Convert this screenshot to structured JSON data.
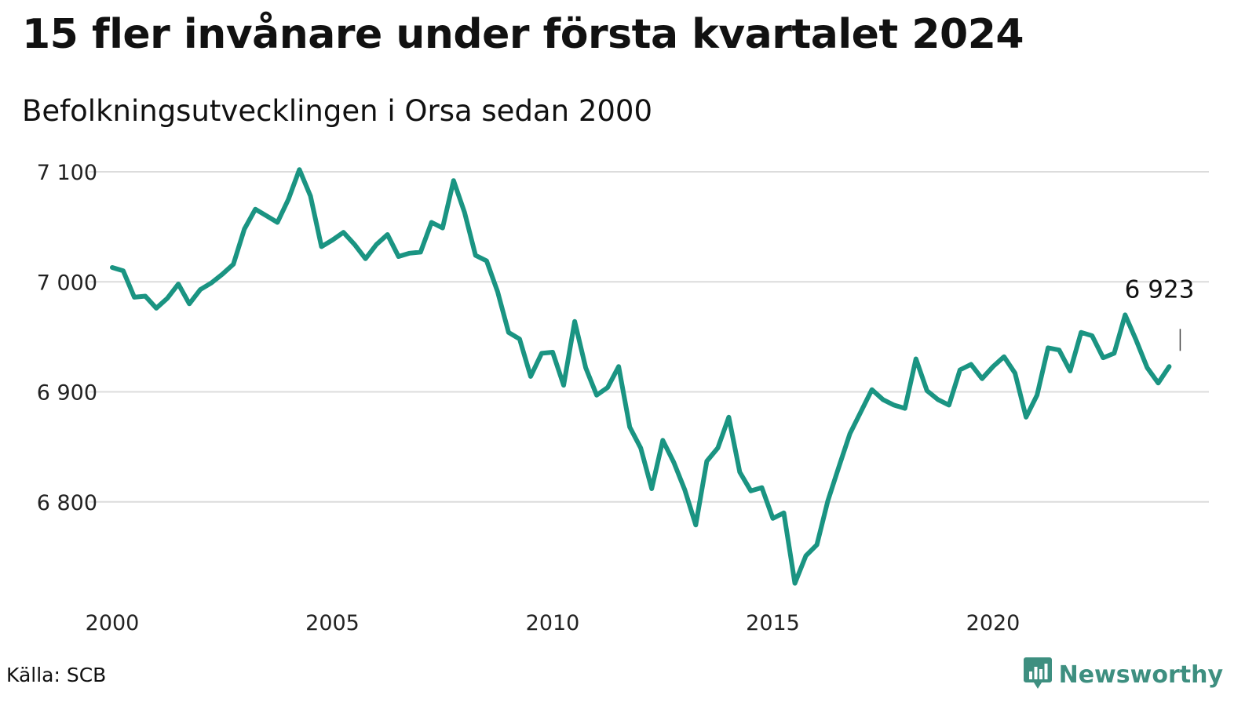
{
  "title": "15 fler invånare under första kvartalet 2024",
  "subtitle": "Befolkningsutvecklingen i Orsa sedan 2000",
  "source": "Källa: SCB",
  "brand": {
    "name": "Newsworthy",
    "icon": "newsworthy-logo-icon"
  },
  "colors": {
    "line": "#1a9482",
    "grid": "#dcdcdc",
    "brand": "#3e8f80"
  },
  "chart_data": {
    "type": "line",
    "title": "15 fler invånare under första kvartalet 2024",
    "subtitle": "Befolkningsutvecklingen i Orsa sedan 2000",
    "xlabel": "",
    "ylabel": "",
    "x_range": [
      2000,
      2024.25
    ],
    "ylim": [
      6720,
      7110
    ],
    "x_ticks": [
      2000,
      2005,
      2010,
      2015,
      2020
    ],
    "x_tick_labels": [
      "2000",
      "2005",
      "2010",
      "2015",
      "2020"
    ],
    "y_ticks": [
      6800,
      6900,
      7000,
      7100
    ],
    "y_tick_labels": [
      "6 800",
      "6 900",
      "7 000",
      "7 100"
    ],
    "grid": "horizontal",
    "legend": "none",
    "annotation": {
      "x": 2024.25,
      "y": 6923,
      "text": "6 923"
    },
    "series": [
      {
        "x_start": 2000.0,
        "x_step": 0.25,
        "values": [
          7013,
          7010,
          6986,
          6987,
          6976,
          6985,
          6998,
          6980,
          6993,
          6999,
          7007,
          7016,
          7048,
          7066,
          7060,
          7054,
          7075,
          7102,
          7078,
          7032,
          7038,
          7045,
          7034,
          7021,
          7034,
          7043,
          7023,
          7026,
          7027,
          7054,
          7049,
          7092,
          7063,
          7024,
          7019,
          6991,
          6954,
          6948,
          6914,
          6935,
          6936,
          6906,
          6964,
          6922,
          6897,
          6904,
          6923,
          6868,
          6849,
          6812,
          6856,
          6836,
          6811,
          6779,
          6837,
          6849,
          6877,
          6827,
          6810,
          6813,
          6785,
          6790,
          6726,
          6751,
          6761,
          6801,
          6832,
          6862,
          6882,
          6902,
          6893,
          6888,
          6885,
          6930,
          6901,
          6893,
          6888,
          6920,
          6925,
          6912,
          6923,
          6932,
          6917,
          6877,
          6897,
          6940,
          6938,
          6919,
          6954,
          6951,
          6931,
          6935,
          6970,
          6947,
          6922,
          6908,
          6923
        ]
      }
    ]
  }
}
